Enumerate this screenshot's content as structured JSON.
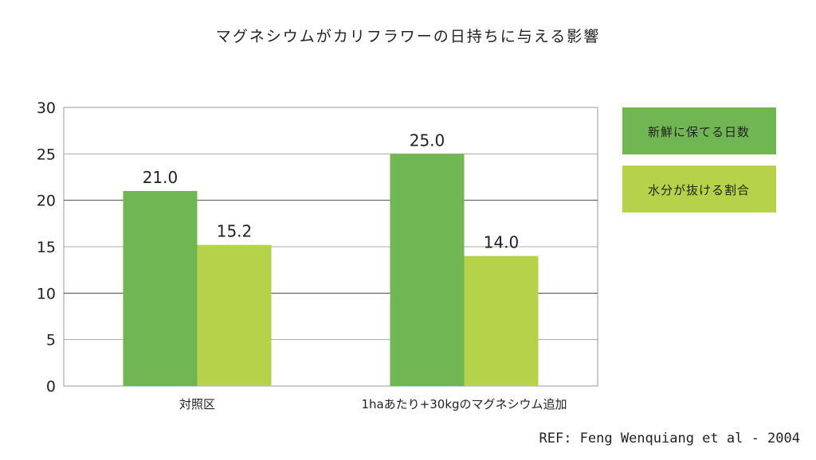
{
  "chart_data": {
    "type": "bar",
    "title": "マグネシウムがカリフラワーの日持ちに与える影響",
    "categories": [
      "対照区",
      "1haあたり+30kgのマグネシウム追加"
    ],
    "series": [
      {
        "name": "新鮮に保てる日数",
        "values": [
          21.0,
          25.0
        ],
        "labels": [
          "21.0",
          "25.0"
        ],
        "color": "#70b653"
      },
      {
        "name": "水分が抜ける割合",
        "values": [
          15.2,
          14.0
        ],
        "labels": [
          "15.2",
          "14.0"
        ],
        "color": "#b5d24a"
      }
    ],
    "yticks": [
      "0",
      "5",
      "10",
      "15",
      "20",
      "25",
      "30"
    ],
    "ylim": [
      0,
      30
    ],
    "xlabel": "",
    "ylabel": "",
    "grid": true,
    "legend_position": "right"
  },
  "source": "REF: Feng Wenquiang et al - 2004"
}
